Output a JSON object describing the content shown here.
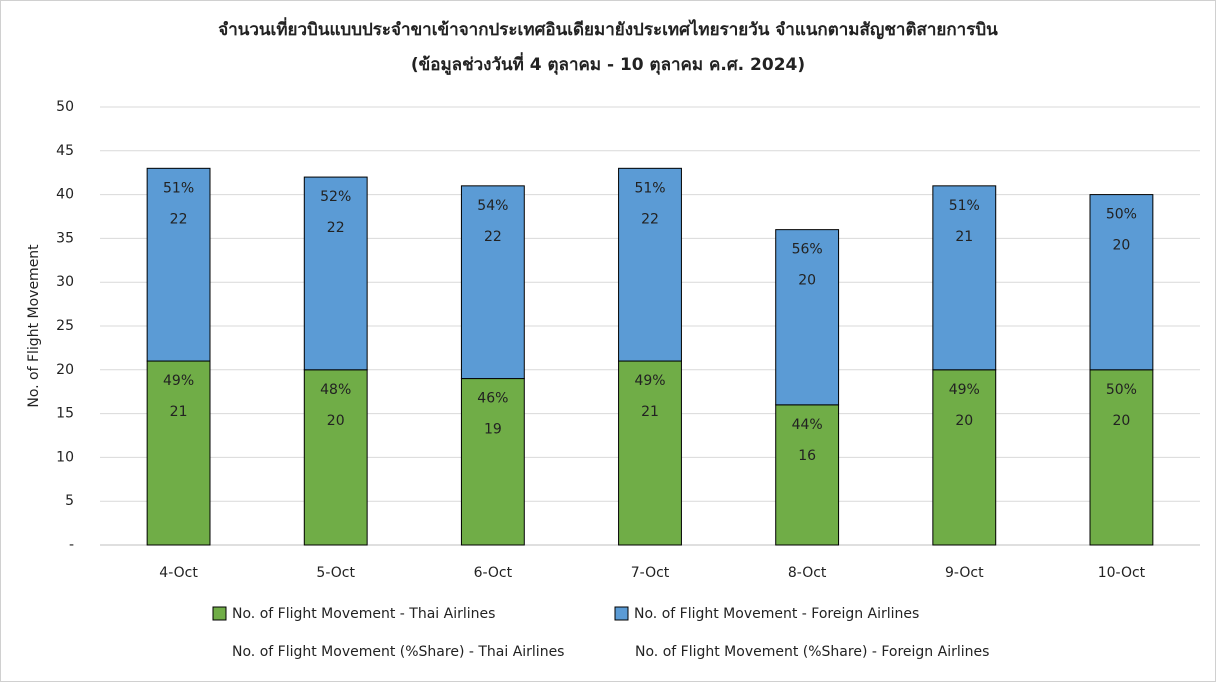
{
  "chart_data": {
    "type": "stacked_bar",
    "title": "จำนวนเที่ยวบินแบบประจำขาเข้าจากประเทศอินเดียมายังประเทศไทยรายวัน  จำแนกตามสัญชาติสายการบิน",
    "subtitle": "(ข้อมูลช่วงวันที่ 4 ตุลาคม - 10 ตุลาคม ค.ศ. 2024)",
    "y_label": "No. of Flight Movement",
    "categories": [
      "4-Oct",
      "5-Oct",
      "6-Oct",
      "7-Oct",
      "8-Oct",
      "9-Oct",
      "10-Oct"
    ],
    "series": [
      {
        "name": "No. of Flight Movement - Thai Airlines",
        "color": "#70ad47",
        "values": [
          21,
          20,
          19,
          21,
          16,
          20,
          20
        ]
      },
      {
        "name": "No. of Flight Movement - Foreign Airlines",
        "color": "#5b9bd5",
        "values": [
          22,
          22,
          22,
          22,
          20,
          21,
          20
        ]
      }
    ],
    "share_series": [
      {
        "name": "No. of Flight Movement (%Share) - Thai Airlines",
        "values": [
          49,
          48,
          46,
          49,
          44,
          49,
          50
        ],
        "value_labels": [
          "49%",
          "48%",
          "46%",
          "49%",
          "44%",
          "49%",
          "50%"
        ]
      },
      {
        "name": "No. of Flight Movement (%Share) - Foreign Airlines",
        "values": [
          51,
          52,
          54,
          51,
          56,
          51,
          50
        ],
        "value_labels": [
          "51%",
          "52%",
          "54%",
          "51%",
          "56%",
          "51%",
          "50%"
        ]
      }
    ],
    "ylim": [
      0,
      50
    ],
    "yticks": [
      {
        "value": 0,
        "label": "-"
      },
      5,
      10,
      15,
      20,
      25,
      30,
      35,
      40,
      45,
      50
    ],
    "grid": true
  }
}
